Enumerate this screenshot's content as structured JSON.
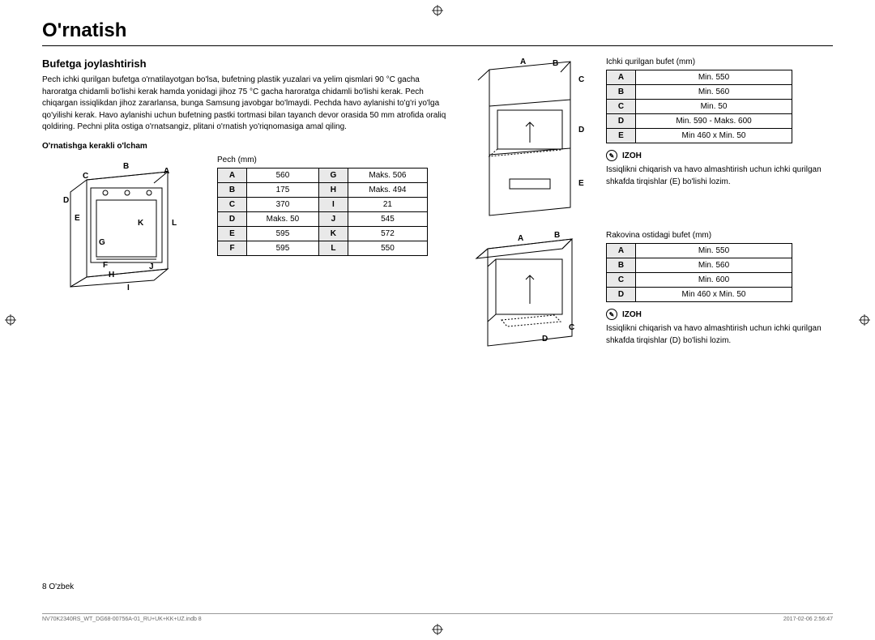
{
  "title": "O'rnatish",
  "section": "Bufetga joylashtirish",
  "intro": "Pech ichki qurilgan bufetga o'rnatilayotgan bo'lsa, bufetning plastik yuzalari va yelim qismlari 90 °C gacha haroratga chidamli bo'lishi kerak hamda yonidagi jihoz 75 °C gacha haroratga chidamli bo'lishi kerak. Pech chiqargan issiqlikdan jihoz zararlansa, bunga Samsung javobgar bo'lmaydi. Pechda havo aylanishi to'g'ri yo'lga qo'yilishi kerak. Havo aylanishi uchun bufetning pastki tortmasi bilan tayanch devor orasida 50 mm atrofida oraliq qoldiring. Pechni plita ostiga o'rnatsangiz, plitani o'rnatish yo'riqnomasiga amal qiling.",
  "sub1": "O'rnatishga kerakli o'lcham",
  "pech_caption": "Pech (mm)",
  "pech_table": {
    "rows": [
      [
        "A",
        "560",
        "G",
        "Maks. 506"
      ],
      [
        "B",
        "175",
        "H",
        "Maks. 494"
      ],
      [
        "C",
        "370",
        "I",
        "21"
      ],
      [
        "D",
        "Maks. 50",
        "J",
        "545"
      ],
      [
        "E",
        "595",
        "K",
        "572"
      ],
      [
        "F",
        "595",
        "L",
        "550"
      ]
    ]
  },
  "cab1_caption": "Ichki qurilgan bufet (mm)",
  "cab1_table": [
    [
      "A",
      "Min. 550"
    ],
    [
      "B",
      "Min. 560"
    ],
    [
      "C",
      "Min. 50"
    ],
    [
      "D",
      "Min. 590 - Maks. 600"
    ],
    [
      "E",
      "Min 460 x Min. 50"
    ]
  ],
  "izoh_label": "IZOH",
  "izoh1": "Issiqlikni chiqarish va havo almashtirish uchun ichki qurilgan shkafda tirqishlar (E) bo'lishi lozim.",
  "cab2_caption": "Rakovina ostidagi bufet (mm)",
  "cab2_table": [
    [
      "A",
      "Min. 550"
    ],
    [
      "B",
      "Min. 560"
    ],
    [
      "C",
      "Min. 600"
    ],
    [
      "D",
      "Min 460 x Min. 50"
    ]
  ],
  "izoh2": "Issiqlikni chiqarish va havo almashtirish uchun ichki qurilgan shkafda tirqishlar (D) bo'lishi lozim.",
  "page_footer": "8   O'zbek",
  "meta_left": "NV70K2340RS_WT_DG68-00756A-01_RU+UK+KK+UZ.indb   8",
  "meta_right": "2017-02-06   2:56:47",
  "colors": {
    "border": "#000000",
    "th_bg": "#e9e9e9",
    "meta": "#999999"
  },
  "diagram_letters_oven": [
    "A",
    "B",
    "C",
    "D",
    "E",
    "F",
    "G",
    "H",
    "I",
    "J",
    "K",
    "L"
  ],
  "diagram_letters_cab1": [
    "A",
    "B",
    "C",
    "D",
    "E"
  ],
  "diagram_letters_cab2": [
    "A",
    "B",
    "C",
    "D"
  ]
}
